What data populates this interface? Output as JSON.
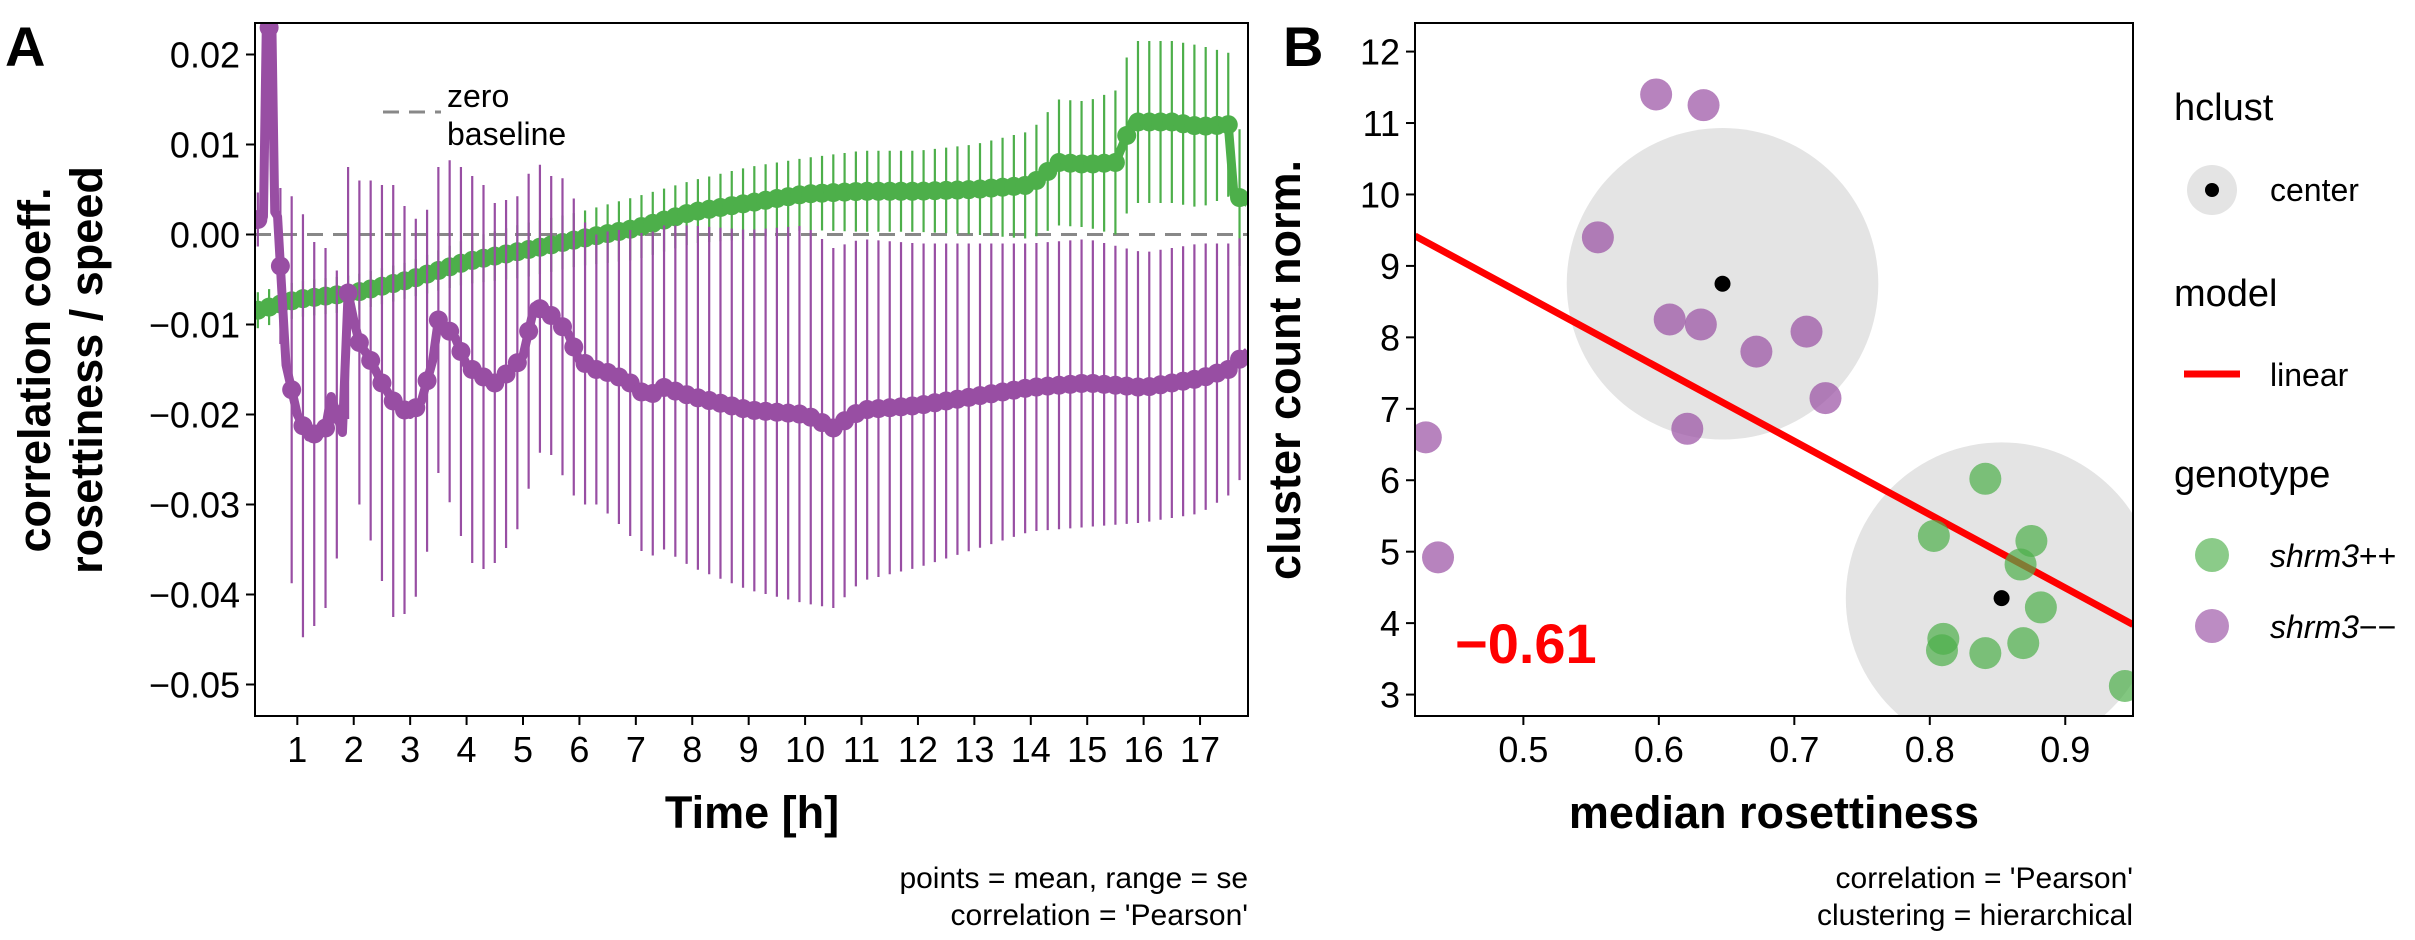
{
  "chart_data": [
    {
      "panel": "A",
      "type": "line",
      "xlabel": "Time [h]",
      "ylabel_lines": [
        "correlation coeff.",
        "rosettiness / speed"
      ],
      "xlim": [
        0.25,
        17.85
      ],
      "ylim": [
        -0.0535,
        0.0235
      ],
      "x_ticks": [
        "1",
        "2",
        "3",
        "4",
        "5",
        "6",
        "7",
        "8",
        "9",
        "10",
        "11",
        "12",
        "13",
        "14",
        "15",
        "16",
        "17"
      ],
      "y_ticks": [
        {
          "value": 0.02,
          "label": "0.02"
        },
        {
          "value": 0.01,
          "label": "0.01"
        },
        {
          "value": 0.0,
          "label": "0.00"
        },
        {
          "value": -0.01,
          "label": "−0.01"
        },
        {
          "value": -0.02,
          "label": "−0.02"
        },
        {
          "value": -0.03,
          "label": "−0.03"
        },
        {
          "value": -0.04,
          "label": "−0.04"
        },
        {
          "value": -0.05,
          "label": "−0.05"
        }
      ],
      "reference_line": {
        "y": 0.0,
        "style": "dashed",
        "color": "#888888",
        "legend_lines": [
          "zero",
          "baseline"
        ]
      },
      "colors": {
        "green": "#4daf4a",
        "purple": "#984ea3"
      },
      "series": [
        {
          "color": "green",
          "x": [
            0.25,
            1.0,
            2.0,
            3.0,
            4.0,
            5.0,
            6.0,
            7.0,
            8.0,
            9.0,
            10.0,
            11.0,
            12.0,
            13.0,
            14.0,
            14.5,
            15.0,
            15.5,
            15.8,
            16.5,
            17.0,
            17.5,
            17.6,
            17.85
          ],
          "y": [
            -0.0085,
            -0.0072,
            -0.0065,
            -0.005,
            -0.003,
            -0.0018,
            -0.0005,
            0.0007,
            0.0025,
            0.0035,
            0.0045,
            0.0048,
            0.0048,
            0.005,
            0.0055,
            0.008,
            0.0078,
            0.008,
            0.0125,
            0.0125,
            0.012,
            0.0122,
            0.0045,
            0.0035
          ],
          "se": [
            0.002,
            0.002,
            0.002,
            0.002,
            0.0025,
            0.003,
            0.003,
            0.0035,
            0.0035,
            0.004,
            0.004,
            0.0045,
            0.0045,
            0.005,
            0.006,
            0.007,
            0.007,
            0.008,
            0.009,
            0.009,
            0.009,
            0.008,
            0.008,
            0.007
          ]
        },
        {
          "color": "purple",
          "x": [
            0.25,
            0.4,
            0.45,
            0.55,
            0.6,
            0.65,
            0.8,
            1.0,
            1.2,
            1.5,
            1.6,
            1.7,
            1.8,
            1.9,
            2.0,
            2.1,
            2.3,
            2.5,
            2.7,
            3.0,
            3.2,
            3.4,
            3.5,
            3.6,
            3.8,
            4.0,
            4.2,
            4.5,
            4.8,
            5.0,
            5.2,
            5.4,
            5.6,
            5.8,
            6.0,
            6.3,
            6.6,
            6.9,
            7.2,
            7.5,
            8.0,
            9.0,
            10.0,
            10.5,
            11.0,
            12.0,
            13.0,
            14.0,
            15.0,
            16.0,
            16.5,
            17.0,
            17.5,
            17.85
          ],
          "y": [
            0.0015,
            0.002,
            0.023,
            0.023,
            0.0025,
            0.002,
            -0.0145,
            -0.02,
            -0.0225,
            -0.0215,
            -0.018,
            -0.02,
            -0.022,
            -0.0065,
            -0.0095,
            -0.012,
            -0.014,
            -0.0165,
            -0.0185,
            -0.02,
            -0.0185,
            -0.014,
            -0.0095,
            -0.01,
            -0.0115,
            -0.0145,
            -0.0155,
            -0.0165,
            -0.015,
            -0.0135,
            -0.008,
            -0.0085,
            -0.0095,
            -0.011,
            -0.014,
            -0.015,
            -0.0155,
            -0.0165,
            -0.018,
            -0.017,
            -0.018,
            -0.0195,
            -0.02,
            -0.0215,
            -0.0195,
            -0.019,
            -0.018,
            -0.017,
            -0.0165,
            -0.017,
            -0.0165,
            -0.016,
            -0.015,
            -0.013
          ],
          "se": [
            0.003,
            0.003,
            0.005,
            0.005,
            0.005,
            0.004,
            0.018,
            0.025,
            0.022,
            0.02,
            0.018,
            0.016,
            0.015,
            0.014,
            0.017,
            0.018,
            0.02,
            0.022,
            0.024,
            0.022,
            0.02,
            0.018,
            0.017,
            0.018,
            0.02,
            0.021,
            0.022,
            0.02,
            0.019,
            0.018,
            0.017,
            0.015,
            0.016,
            0.017,
            0.016,
            0.015,
            0.016,
            0.017,
            0.018,
            0.018,
            0.019,
            0.02,
            0.021,
            0.02,
            0.019,
            0.018,
            0.017,
            0.016,
            0.016,
            0.015,
            0.015,
            0.015,
            0.014,
            0.013
          ]
        }
      ],
      "captions": [
        "points = mean, range = se",
        "correlation = 'Pearson'"
      ]
    },
    {
      "panel": "B",
      "type": "scatter",
      "xlabel": "median rosettiness",
      "ylabel": "cluster count norm.",
      "xlim": [
        0.42,
        0.95
      ],
      "ylim": [
        2.7,
        12.4
      ],
      "x_ticks": [
        "0.5",
        "0.6",
        "0.7",
        "0.8",
        "0.9"
      ],
      "y_ticks": [
        "3",
        "4",
        "5",
        "6",
        "7",
        "8",
        "9",
        "10",
        "11",
        "12"
      ],
      "points": [
        {
          "x": 0.598,
          "y": 11.4,
          "genotype": "shrm3--"
        },
        {
          "x": 0.633,
          "y": 11.25,
          "genotype": "shrm3--"
        },
        {
          "x": 0.555,
          "y": 9.4,
          "genotype": "shrm3--"
        },
        {
          "x": 0.608,
          "y": 8.25,
          "genotype": "shrm3--"
        },
        {
          "x": 0.631,
          "y": 8.18,
          "genotype": "shrm3--"
        },
        {
          "x": 0.709,
          "y": 8.08,
          "genotype": "shrm3--"
        },
        {
          "x": 0.672,
          "y": 7.8,
          "genotype": "shrm3--"
        },
        {
          "x": 0.723,
          "y": 7.15,
          "genotype": "shrm3--"
        },
        {
          "x": 0.621,
          "y": 6.72,
          "genotype": "shrm3--"
        },
        {
          "x": 0.428,
          "y": 6.6,
          "genotype": "shrm3--"
        },
        {
          "x": 0.437,
          "y": 4.92,
          "genotype": "shrm3--"
        },
        {
          "x": 0.841,
          "y": 6.02,
          "genotype": "shrm3++"
        },
        {
          "x": 0.803,
          "y": 5.22,
          "genotype": "shrm3++"
        },
        {
          "x": 0.875,
          "y": 5.15,
          "genotype": "shrm3++"
        },
        {
          "x": 0.867,
          "y": 4.82,
          "genotype": "shrm3++"
        },
        {
          "x": 0.882,
          "y": 4.22,
          "genotype": "shrm3++"
        },
        {
          "x": 0.81,
          "y": 3.78,
          "genotype": "shrm3++"
        },
        {
          "x": 0.809,
          "y": 3.62,
          "genotype": "shrm3++"
        },
        {
          "x": 0.841,
          "y": 3.58,
          "genotype": "shrm3++"
        },
        {
          "x": 0.869,
          "y": 3.72,
          "genotype": "shrm3++"
        },
        {
          "x": 0.944,
          "y": 3.12,
          "genotype": "shrm3++"
        }
      ],
      "cluster_centers": [
        {
          "x": 0.647,
          "y": 8.75,
          "radius_x": 0.115
        },
        {
          "x": 0.853,
          "y": 4.35,
          "radius_x": 0.115
        }
      ],
      "model_line": {
        "x": [
          0.42,
          0.95
        ],
        "y": [
          9.42,
          3.98
        ],
        "color": "#ff0000"
      },
      "correlation_label": "−0.61",
      "legend": {
        "hclust": {
          "title": "hclust",
          "item": "center"
        },
        "model": {
          "title": "model",
          "item": "linear"
        },
        "genotype": {
          "title": "genotype",
          "items": [
            {
              "italic": "shrm3",
              "suffix": "++",
              "color": "#4daf4a"
            },
            {
              "italic": "shrm3",
              "suffix": "−−",
              "color": "#984ea3"
            }
          ]
        }
      },
      "colors": {
        "shrm3++": "#4daf4a",
        "shrm3--": "#984ea3",
        "cluster": "#e4e4e4",
        "center": "#000000"
      },
      "captions": [
        "correlation = 'Pearson'",
        "clustering = hierarchical"
      ]
    }
  ]
}
